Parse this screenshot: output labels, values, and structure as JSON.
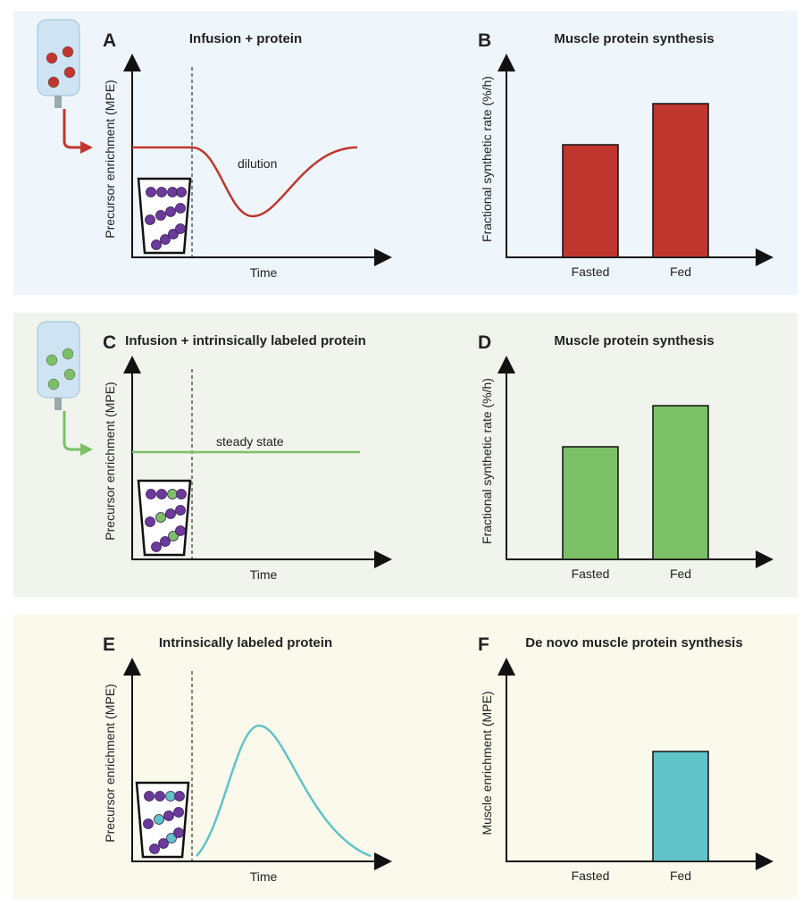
{
  "panels": [
    {
      "letter": "A",
      "title": "Infusion + protein",
      "y_label": "Precursor enrichment (MPE)",
      "x_label": "Time",
      "annotation": "dilution"
    },
    {
      "letter": "B",
      "title": "Muscle protein synthesis",
      "y_label": "Fractional synthetic rate (%/h)",
      "categories": [
        "Fasted",
        "Fed"
      ]
    },
    {
      "letter": "C",
      "title": "Infusion + intrinsically labeled protein",
      "y_label": "Precursor enrichment (MPE)",
      "x_label": "Time",
      "annotation": "steady state"
    },
    {
      "letter": "D",
      "title": "Muscle protein synthesis",
      "y_label": "Fractional synthetic rate (%/h)",
      "categories": [
        "Fasted",
        "Fed"
      ]
    },
    {
      "letter": "E",
      "title": "Intrinsically labeled  protein",
      "y_label": "Precursor enrichment (MPE)",
      "x_label": "Time"
    },
    {
      "letter": "F",
      "title": "De novo muscle protein synthesis",
      "y_label": "Muscle enrichment (MPE)",
      "categories": [
        "Fasted",
        "Fed"
      ]
    }
  ]
}
